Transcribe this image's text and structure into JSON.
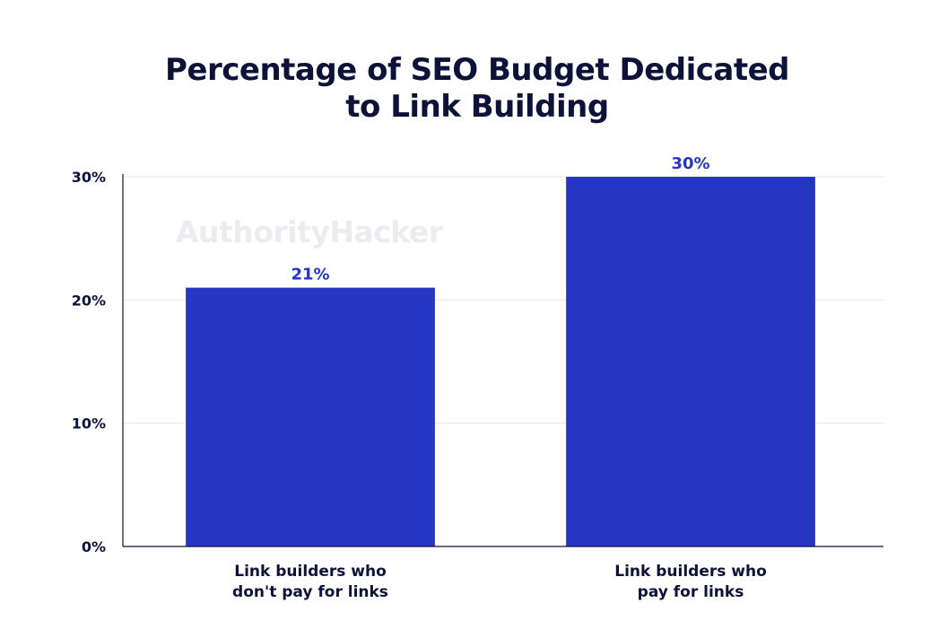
{
  "watermark": "AuthorityHacker",
  "colors": {
    "bar": "#2536c4",
    "data_label": "#2536c4",
    "text": "#0c1238",
    "grid": "#e6e6ea",
    "axis": "#0c1238"
  },
  "chart_data": {
    "type": "bar",
    "title_lines": [
      "Percentage of SEO Budget Dedicated",
      "to Link Building"
    ],
    "categories": [
      [
        "Link builders who",
        "don't pay for links"
      ],
      [
        "Link builders who",
        "pay for links"
      ]
    ],
    "values": [
      21,
      30
    ],
    "value_labels": [
      "21%",
      "30%"
    ],
    "y_ticks": [
      0,
      10,
      20,
      30
    ],
    "y_tick_labels": [
      "0%",
      "10%",
      "20%",
      "30%"
    ],
    "ylim": [
      0,
      30
    ],
    "grid": true,
    "legend": "none"
  }
}
